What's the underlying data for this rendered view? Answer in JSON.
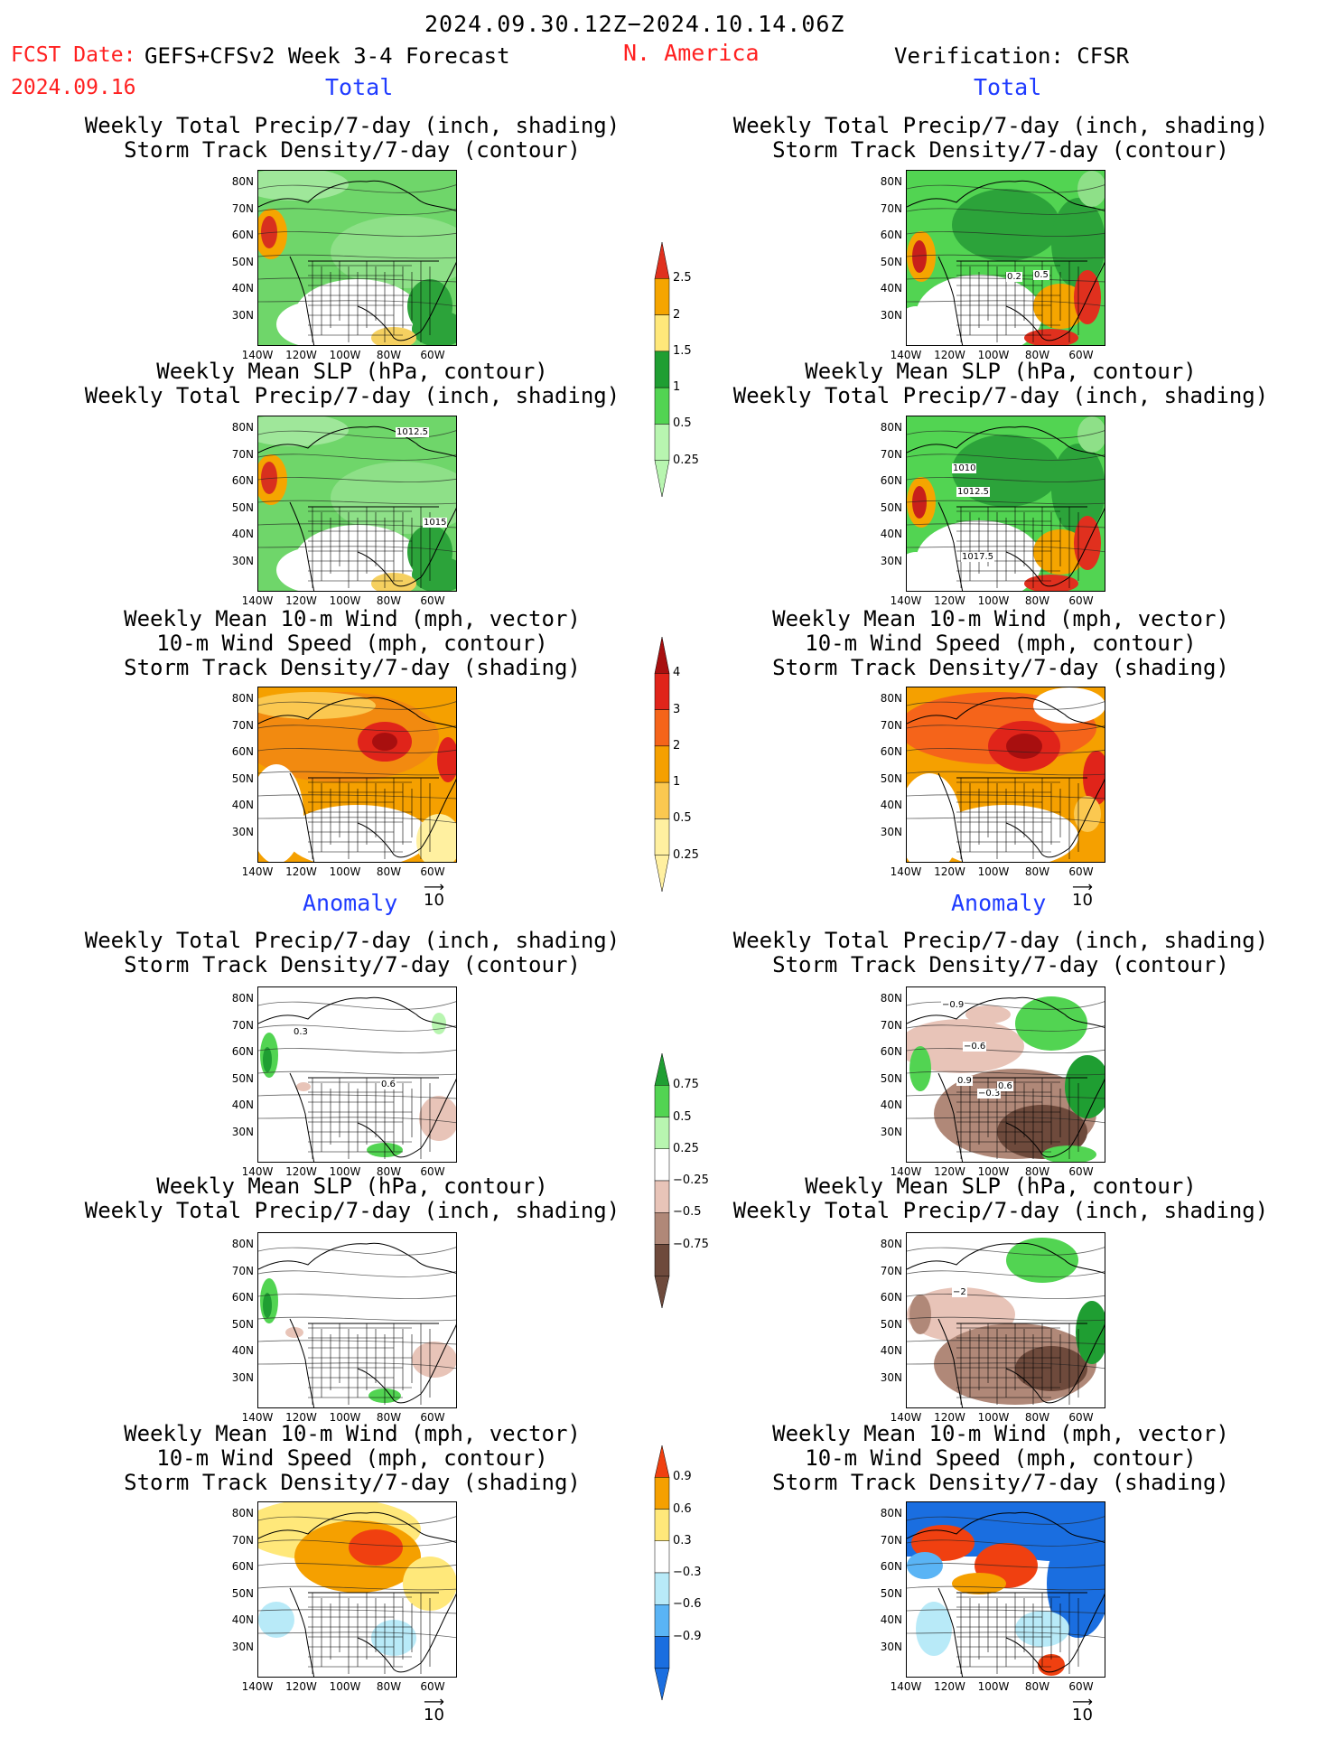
{
  "header": {
    "date_range": "2024.09.30.12Z−2024.10.14.06Z",
    "fcst_label": "FCST Date:",
    "model": "GEFS+CFSv2 Week 3-4 Forecast",
    "fcst_date": "2024.09.16",
    "region": "N. America",
    "verification": "Verification: CFSR"
  },
  "sections": {
    "total": "Total",
    "anomaly": "Anomaly"
  },
  "titles": {
    "precip_storm": [
      "Weekly Total Precip/7-day (inch, shading)",
      "Storm Track Density/7-day (contour)"
    ],
    "slp_precip": [
      "Weekly Mean SLP (hPa, contour)",
      "Weekly Total Precip/7-day (inch, shading)"
    ],
    "wind_storm": [
      "Weekly Mean 10-m Wind (mph, vector)",
      "10-m Wind Speed (mph, contour)",
      "Storm Track Density/7-day (shading)"
    ]
  },
  "axes": {
    "lat": [
      "80N",
      "70N",
      "60N",
      "50N",
      "40N",
      "30N"
    ],
    "lon": [
      "140W",
      "120W",
      "100W",
      "80W",
      "60W"
    ]
  },
  "vector_ref": "10",
  "colorbars": {
    "precip_total": {
      "labels": [
        "2.5",
        "2",
        "1.5",
        "1",
        "0.5",
        "0.25"
      ],
      "colors": [
        "#e0301e",
        "#f5a500",
        "#ffe87a",
        "#1f9e32",
        "#52d452",
        "#b8f5b0"
      ]
    },
    "storm_total": {
      "labels": [
        "4",
        "3",
        "2",
        "1",
        "0.5",
        "0.25"
      ],
      "colors": [
        "#a80f0f",
        "#e0241a",
        "#f5641a",
        "#f5a000",
        "#fbc850",
        "#fff0a0"
      ]
    },
    "precip_anom": {
      "labels": [
        "0.75",
        "0.5",
        "0.25",
        "−0.25",
        "−0.5",
        "−0.75"
      ],
      "colors": [
        "#1f9e32",
        "#52d452",
        "#b8f5b0",
        "#ffffff",
        "#e8c4b8",
        "#b08878",
        "#6e4a3c"
      ]
    },
    "storm_anom": {
      "labels": [
        "0.9",
        "0.6",
        "0.3",
        "−0.3",
        "−0.6",
        "−0.9"
      ],
      "colors": [
        "#f04010",
        "#f5a000",
        "#ffe87a",
        "#ffffff",
        "#b8eaf8",
        "#5ab4f5",
        "#1a6ee0"
      ]
    }
  },
  "contour_labels": {
    "p1r_a": "0.2",
    "p1r_b": "0.5",
    "p2l": "1012.5",
    "p2l_b": "1015",
    "p2r_a": "1010",
    "p2r_b": "1012.5",
    "p2r_c": "1017.5",
    "a1l_a": "0.3",
    "a1l_b": "0.6",
    "a1r_a": "−0.9",
    "a1r_b": "−0.6",
    "a1r_c": "0.9",
    "a1r_d": "−0.3",
    "a1r_e": "0.6",
    "a2r_a": "−2"
  }
}
